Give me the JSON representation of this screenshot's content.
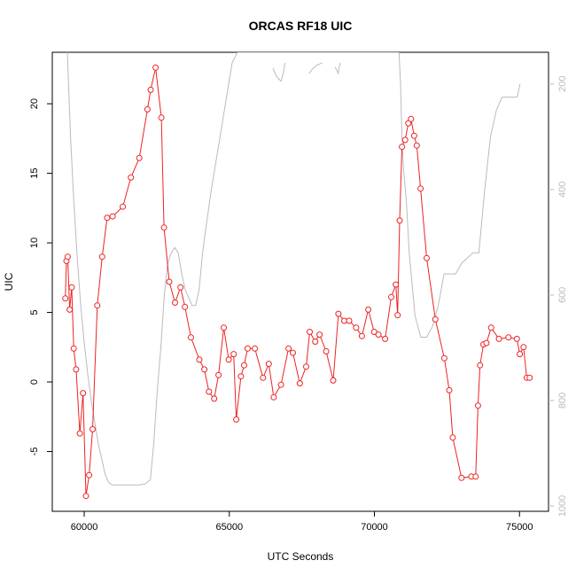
{
  "chart_data": {
    "type": "line",
    "title": "ORCAS RF18 UIC",
    "xlabel": "UTC Seconds",
    "ylabel": "UIC",
    "xlim": [
      58900,
      76000
    ],
    "ylim": [
      -9.3,
      23.7
    ],
    "x_ticks": [
      {
        "value": 60000,
        "label": "60000"
      },
      {
        "value": 65000,
        "label": "65000"
      },
      {
        "value": 70000,
        "label": "70000"
      },
      {
        "value": 75000,
        "label": "75000"
      }
    ],
    "y_ticks": [
      {
        "value": -5,
        "label": "-5"
      },
      {
        "value": 0,
        "label": "0"
      },
      {
        "value": 5,
        "label": "5"
      },
      {
        "value": 10,
        "label": "10"
      },
      {
        "value": 15,
        "label": "15"
      },
      {
        "value": 20,
        "label": "20"
      }
    ],
    "y2lim": [
      1010,
      140
    ],
    "y2_ticks": [
      {
        "value": 200,
        "label": "200"
      },
      {
        "value": 400,
        "label": "400"
      },
      {
        "value": 600,
        "label": "600"
      },
      {
        "value": 800,
        "label": "800"
      },
      {
        "value": 1000,
        "label": "1000"
      }
    ],
    "grid": false,
    "series": [
      {
        "color": "#ee2222",
        "marker": "open-circle",
        "x": [
          59350,
          59390,
          59430,
          59500,
          59570,
          59640,
          59720,
          59850,
          59960,
          60060,
          60170,
          60290,
          60450,
          60620,
          60790,
          60980,
          61330,
          61610,
          61900,
          62180,
          62290,
          62460,
          62660,
          62750,
          62930,
          63130,
          63320,
          63470,
          63680,
          63970,
          64140,
          64300,
          64480,
          64630,
          64810,
          64980,
          65150,
          65240,
          65400,
          65510,
          65630,
          65880,
          66160,
          66360,
          66530,
          66780,
          67040,
          67190,
          67430,
          67650,
          67770,
          67960,
          68110,
          68340,
          68580,
          68760,
          68960,
          69130,
          69370,
          69570,
          69790,
          69990,
          70140,
          70370,
          70580,
          70740,
          70800,
          70870,
          70950,
          71060,
          71170,
          71260,
          71370,
          71460,
          71590,
          71800,
          72100,
          72410,
          72580,
          72700,
          73000,
          73340,
          73490,
          73570,
          73640,
          73760,
          73860,
          74020,
          74290,
          74620,
          74910,
          75010,
          75140,
          75250,
          75350
        ],
        "values": [
          6.0,
          8.7,
          9.0,
          5.2,
          6.8,
          2.4,
          0.9,
          -3.7,
          -0.8,
          -8.2,
          -6.7,
          -3.4,
          5.5,
          9.0,
          11.8,
          11.9,
          12.6,
          14.7,
          16.1,
          19.6,
          21.0,
          22.6,
          19.0,
          11.1,
          7.2,
          5.7,
          6.8,
          5.4,
          3.2,
          1.6,
          0.9,
          -0.7,
          -1.2,
          0.5,
          3.9,
          1.6,
          2.0,
          -2.7,
          0.4,
          1.2,
          2.4,
          2.4,
          0.3,
          1.3,
          -1.1,
          -0.2,
          2.4,
          2.1,
          -0.1,
          1.1,
          3.6,
          2.9,
          3.4,
          2.2,
          0.1,
          4.9,
          4.4,
          4.4,
          3.9,
          3.3,
          5.2,
          3.6,
          3.4,
          3.1,
          6.1,
          7.0,
          4.8,
          11.6,
          16.9,
          17.4,
          18.6,
          18.9,
          17.7,
          17.0,
          13.9,
          8.9,
          4.5,
          1.7,
          -0.6,
          -4.0,
          -6.9,
          -6.8,
          -6.8,
          -1.7,
          1.2,
          2.7,
          2.8,
          3.9,
          3.1,
          3.2,
          3.1,
          2.0,
          2.5,
          0.3,
          0.3
        ]
      },
      {
        "color": "#bbbbbb",
        "marker": "none",
        "axis": "right",
        "x": [
          59420,
          59530,
          59640,
          59760,
          59880,
          60000,
          60120,
          60240,
          60360,
          60480,
          60600,
          60720,
          60840,
          60960,
          61200,
          61560,
          61920,
          62100,
          62280,
          62400,
          62520,
          62640,
          62760,
          62880,
          63000,
          63120,
          63240,
          63360,
          63480,
          63600,
          63720,
          63840,
          63960,
          64080,
          64200,
          64380,
          64560,
          64740,
          64920,
          65100,
          65280,
          65460,
          65640,
          65820,
          66000,
          66180,
          66360,
          66500,
          66800,
          67000,
          67200,
          67300,
          67400,
          67600,
          67700,
          67800,
          68000,
          68200,
          68400,
          68600,
          68700,
          68800,
          68900,
          69000,
          69200,
          69400,
          69600,
          69800,
          70000,
          70200,
          70400,
          70600,
          70800,
          70850,
          70900,
          70950,
          71000,
          71100,
          71200,
          71400,
          71600,
          71800,
          72000,
          72200,
          72400,
          72600,
          72800,
          73000,
          73200,
          73400,
          73600,
          73800,
          74000,
          74200,
          74400,
          74600,
          74800,
          74920,
          75020
        ],
        "values": [
          140,
          300,
          420,
          530,
          620,
          690,
          750,
          800,
          840,
          880,
          910,
          940,
          955,
          960,
          960,
          960,
          960,
          958,
          950,
          880,
          780,
          700,
          600,
          540,
          520,
          510,
          520,
          560,
          590,
          605,
          620,
          620,
          590,
          520,
          470,
          400,
          340,
          280,
          220,
          160,
          140,
          140,
          140,
          140,
          140,
          140,
          140,
          140,
          140,
          140,
          140,
          140,
          140,
          140,
          140,
          140,
          140,
          140,
          140,
          140,
          140,
          140,
          140,
          140,
          140,
          140,
          140,
          140,
          140,
          140,
          140,
          140,
          140,
          140,
          200,
          300,
          360,
          420,
          520,
          640,
          680,
          680,
          660,
          620,
          560,
          560,
          560,
          540,
          530,
          520,
          520,
          400,
          300,
          250,
          225,
          225,
          225,
          225,
          200
        ]
      }
    ],
    "gray_upper_segments": [
      {
        "x": [
          66500,
          66620,
          66780,
          66860,
          66920
        ],
        "values": [
          170,
          185,
          195,
          180,
          160
        ]
      },
      {
        "x": [
          67750,
          67860,
          68000,
          68200
        ],
        "values": [
          180,
          172,
          165,
          160
        ]
      },
      {
        "x": [
          68650,
          68750,
          68820
        ],
        "values": [
          168,
          180,
          160
        ]
      }
    ]
  }
}
